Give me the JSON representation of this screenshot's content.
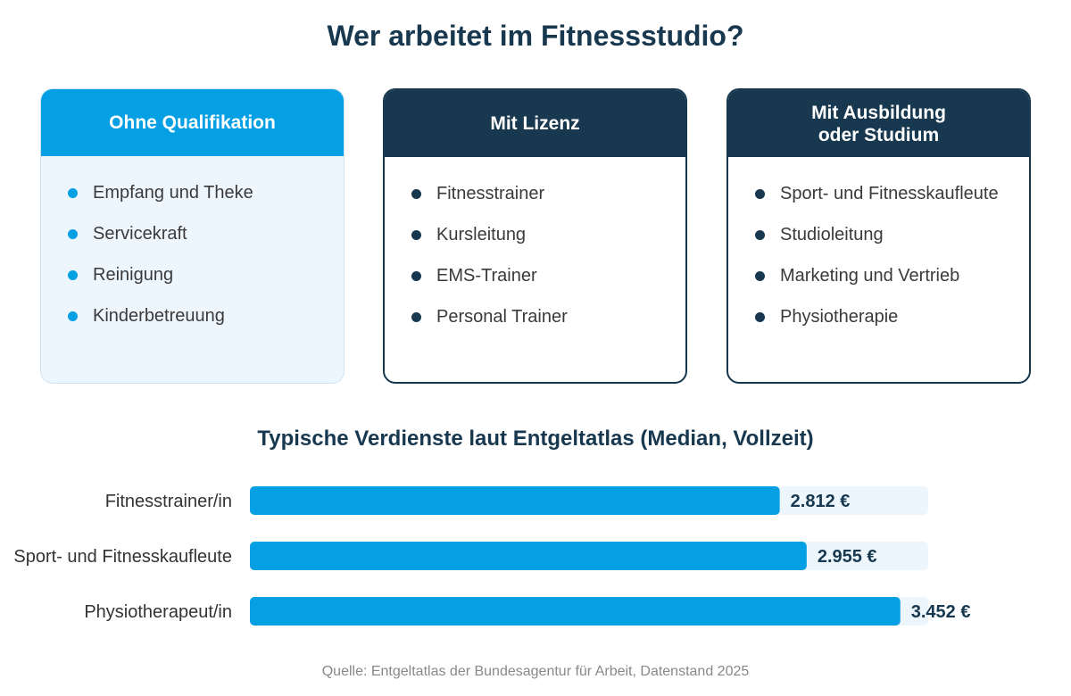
{
  "title": "Wer arbeitet im Fitnessstudio?",
  "cards": [
    {
      "title": "Ohne Qualifikation",
      "items": [
        "Empfang und Theke",
        "Servicekraft",
        "Reinigung",
        "Kinderbetreuung"
      ]
    },
    {
      "title": "Mit Lizenz",
      "items": [
        "Fitnesstrainer",
        "Kursleitung",
        "EMS-Trainer",
        "Personal Trainer"
      ]
    },
    {
      "title": "Mit Ausbildung\noder Studium",
      "items": [
        "Sport- und Fitnesskaufleute",
        "Studioleitung",
        "Marketing und Vertrieb",
        "Physiotherapie"
      ]
    }
  ],
  "colors": {
    "accent": "#059fe3",
    "dark": "#17384f",
    "track": "#eef6fd"
  },
  "chart_data": {
    "type": "bar",
    "orientation": "horizontal",
    "title": "Typische Verdienste laut Entgeltatlas (Median, Vollzeit)",
    "categories": [
      "Fitnesstrainer/in",
      "Sport- und Fitnesskaufleute",
      "Physiotherapeut/in"
    ],
    "values": [
      2812,
      2955,
      3452
    ],
    "value_labels": [
      "2.812 €",
      "2.955 €",
      "3.452 €"
    ],
    "xlim": [
      0,
      3600
    ]
  },
  "source": "Quelle: Entgeltatlas der Bundesagentur für Arbeit, Datenstand 2025"
}
